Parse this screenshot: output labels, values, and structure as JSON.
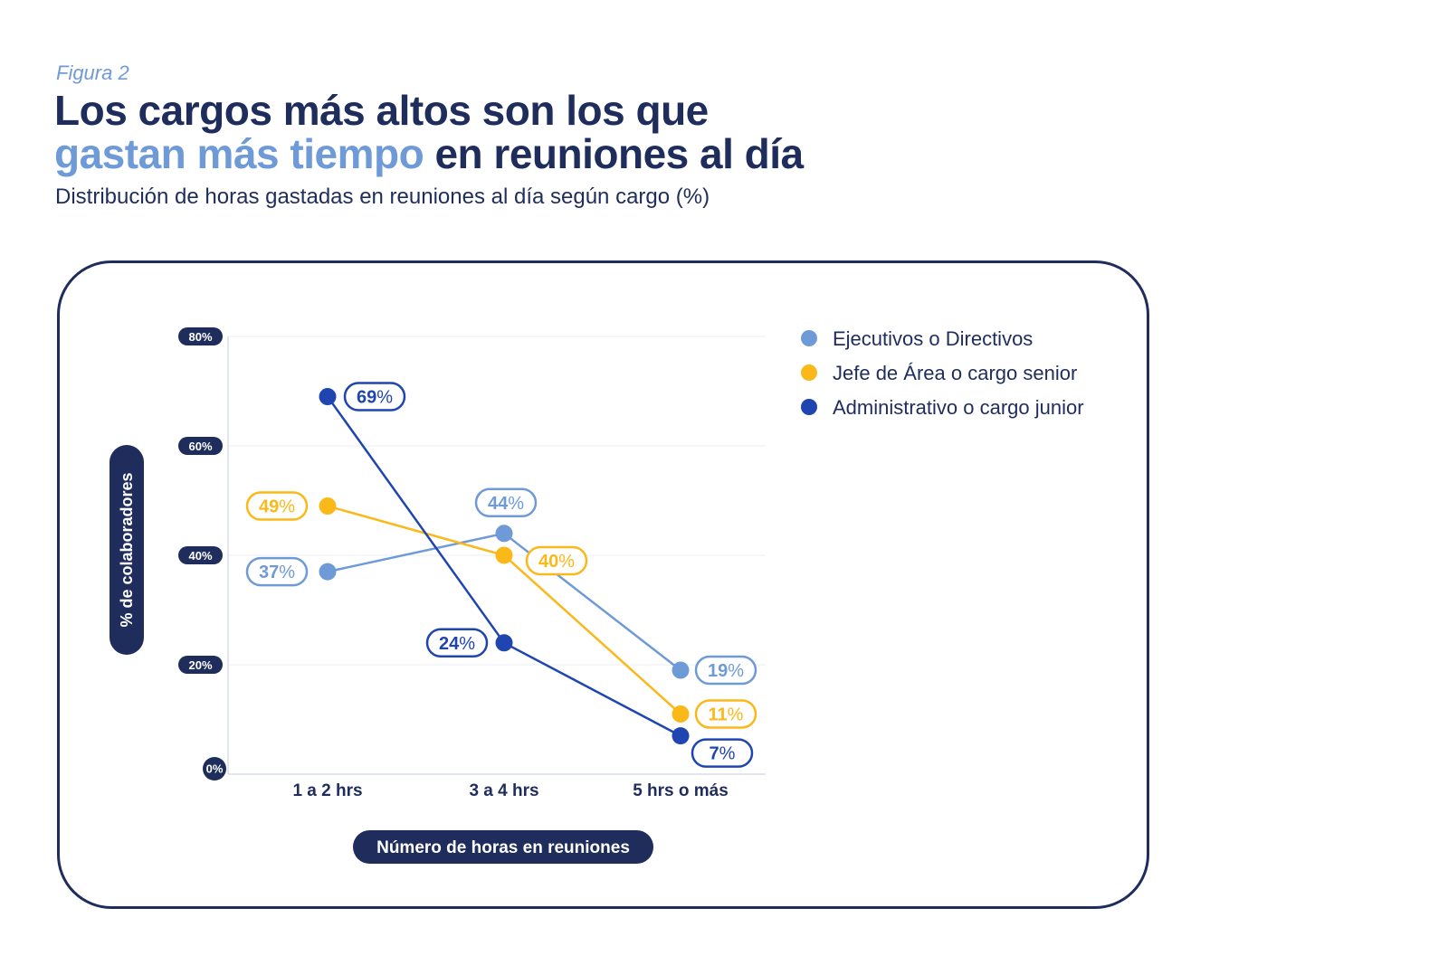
{
  "figure_label": "Figura 2",
  "title": {
    "line1": "Los cargos más altos son los que",
    "line2_highlight": "gastan más tiempo",
    "line2_rest": " en reuniones al día"
  },
  "subtitle": "Distribución de horas gastadas en reuniones al día según cargo (%)",
  "colors": {
    "navy": "#1f2d5c",
    "light_blue": "#6f9ad8",
    "yellow": "#fbb819",
    "dark_blue": "#1f45b0"
  },
  "chart_data": {
    "type": "line",
    "categories": [
      "1 a 2 hrs",
      "3 a 4 hrs",
      "5 hrs o más"
    ],
    "xlabel": "Número de horas en reuniones",
    "ylabel": "% de colaboradores",
    "ylim": [
      0,
      80
    ],
    "yticks": [
      0,
      20,
      40,
      60,
      80
    ],
    "ytick_labels": [
      "0",
      "20",
      "40",
      "60",
      "80"
    ],
    "ytick_suffix": "%",
    "grid": true,
    "legend_position": "top-right",
    "series": [
      {
        "name": "Ejecutivos o Directivos",
        "color": "#6f9ad8",
        "values": [
          37,
          44,
          19
        ],
        "labels": [
          "37",
          "44",
          "19"
        ]
      },
      {
        "name": "Jefe de Área o cargo senior",
        "color": "#fbb819",
        "values": [
          49,
          40,
          11
        ],
        "labels": [
          "49",
          "40",
          "11"
        ]
      },
      {
        "name": "Administrativo o cargo junior",
        "color": "#1f45b0",
        "values": [
          69,
          24,
          7
        ],
        "labels": [
          "69",
          "24",
          "7"
        ]
      }
    ],
    "value_suffix": "%"
  }
}
